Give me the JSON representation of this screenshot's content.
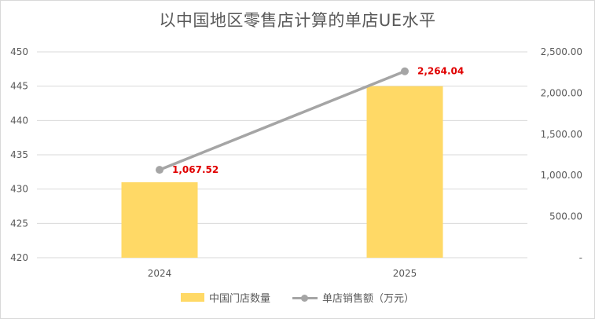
{
  "chart_data": {
    "type": "bar+line",
    "title": "以中国地区零售店计算的单店UE水平",
    "categories": [
      "2024",
      "2025"
    ],
    "series": [
      {
        "name": "中国门店数量",
        "type": "bar",
        "axis": "left",
        "values": [
          431,
          445
        ],
        "color": "#FFD966"
      },
      {
        "name": "单店销售额（万元）",
        "type": "line",
        "axis": "right",
        "values": [
          1067.52,
          2264.04
        ],
        "data_labels": [
          "1,067.52",
          "2,264.04"
        ],
        "color": "#A5A5A5",
        "label_color": "#E00000"
      }
    ],
    "y_left": {
      "min": 420,
      "max": 450,
      "ticks": [
        "420",
        "425",
        "430",
        "435",
        "440",
        "445",
        "450"
      ]
    },
    "y_right": {
      "min": 0,
      "max": 2500,
      "ticks": [
        "-",
        "500.00",
        "1,000.00",
        "1,500.00",
        "2,000.00",
        "2,500.00"
      ]
    },
    "grid": true,
    "legend_position": "bottom"
  }
}
